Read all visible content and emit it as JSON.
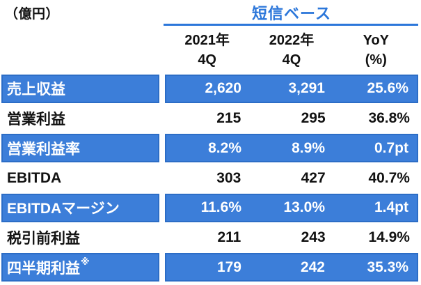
{
  "header": {
    "unit": "（億円）",
    "title": "短信ベース"
  },
  "columns": [
    {
      "line1": "2021年",
      "line2": "4Q"
    },
    {
      "line1": "2022年",
      "line2": "4Q"
    },
    {
      "line1": "YoY",
      "line2": "(%)"
    }
  ],
  "rows": [
    {
      "label": "売上収益",
      "sup": "",
      "values": [
        "2,620",
        "3,291",
        "25.6%"
      ]
    },
    {
      "label": "営業利益",
      "sup": "",
      "values": [
        "215",
        "295",
        "36.8%"
      ]
    },
    {
      "label": "営業利益率",
      "sup": "",
      "values": [
        "8.2%",
        "8.9%",
        "0.7pt"
      ]
    },
    {
      "label": "EBITDA",
      "sup": "",
      "values": [
        "303",
        "427",
        "40.7%"
      ]
    },
    {
      "label": "EBITDAマージン",
      "sup": "",
      "values": [
        "11.6%",
        "13.0%",
        "1.4pt"
      ]
    },
    {
      "label": "税引前利益",
      "sup": "",
      "values": [
        "211",
        "243",
        "14.9%"
      ]
    },
    {
      "label": "四半期利益",
      "sup": "※",
      "values": [
        "179",
        "242",
        "35.3%"
      ]
    }
  ],
  "colors": {
    "row_fill_blue": "#3c7ed9",
    "row_border_blue": "#2c6dc6",
    "title_blue": "#2c77da",
    "text_black": "#121212",
    "text_white": "#ffffff"
  },
  "chart_data": {
    "type": "table",
    "title": "短信ベース",
    "unit": "億円",
    "columns": [
      "2021年4Q",
      "2022年4Q",
      "YoY(%)"
    ],
    "rows": [
      [
        "売上収益",
        "2,620",
        "3,291",
        "25.6%"
      ],
      [
        "営業利益",
        "215",
        "295",
        "36.8%"
      ],
      [
        "営業利益率",
        "8.2%",
        "8.9%",
        "0.7pt"
      ],
      [
        "EBITDA",
        "303",
        "427",
        "40.7%"
      ],
      [
        "EBITDAマージン",
        "11.6%",
        "13.0%",
        "1.4pt"
      ],
      [
        "税引前利益",
        "211",
        "243",
        "14.9%"
      ],
      [
        "四半期利益※",
        "179",
        "242",
        "35.3%"
      ]
    ]
  }
}
